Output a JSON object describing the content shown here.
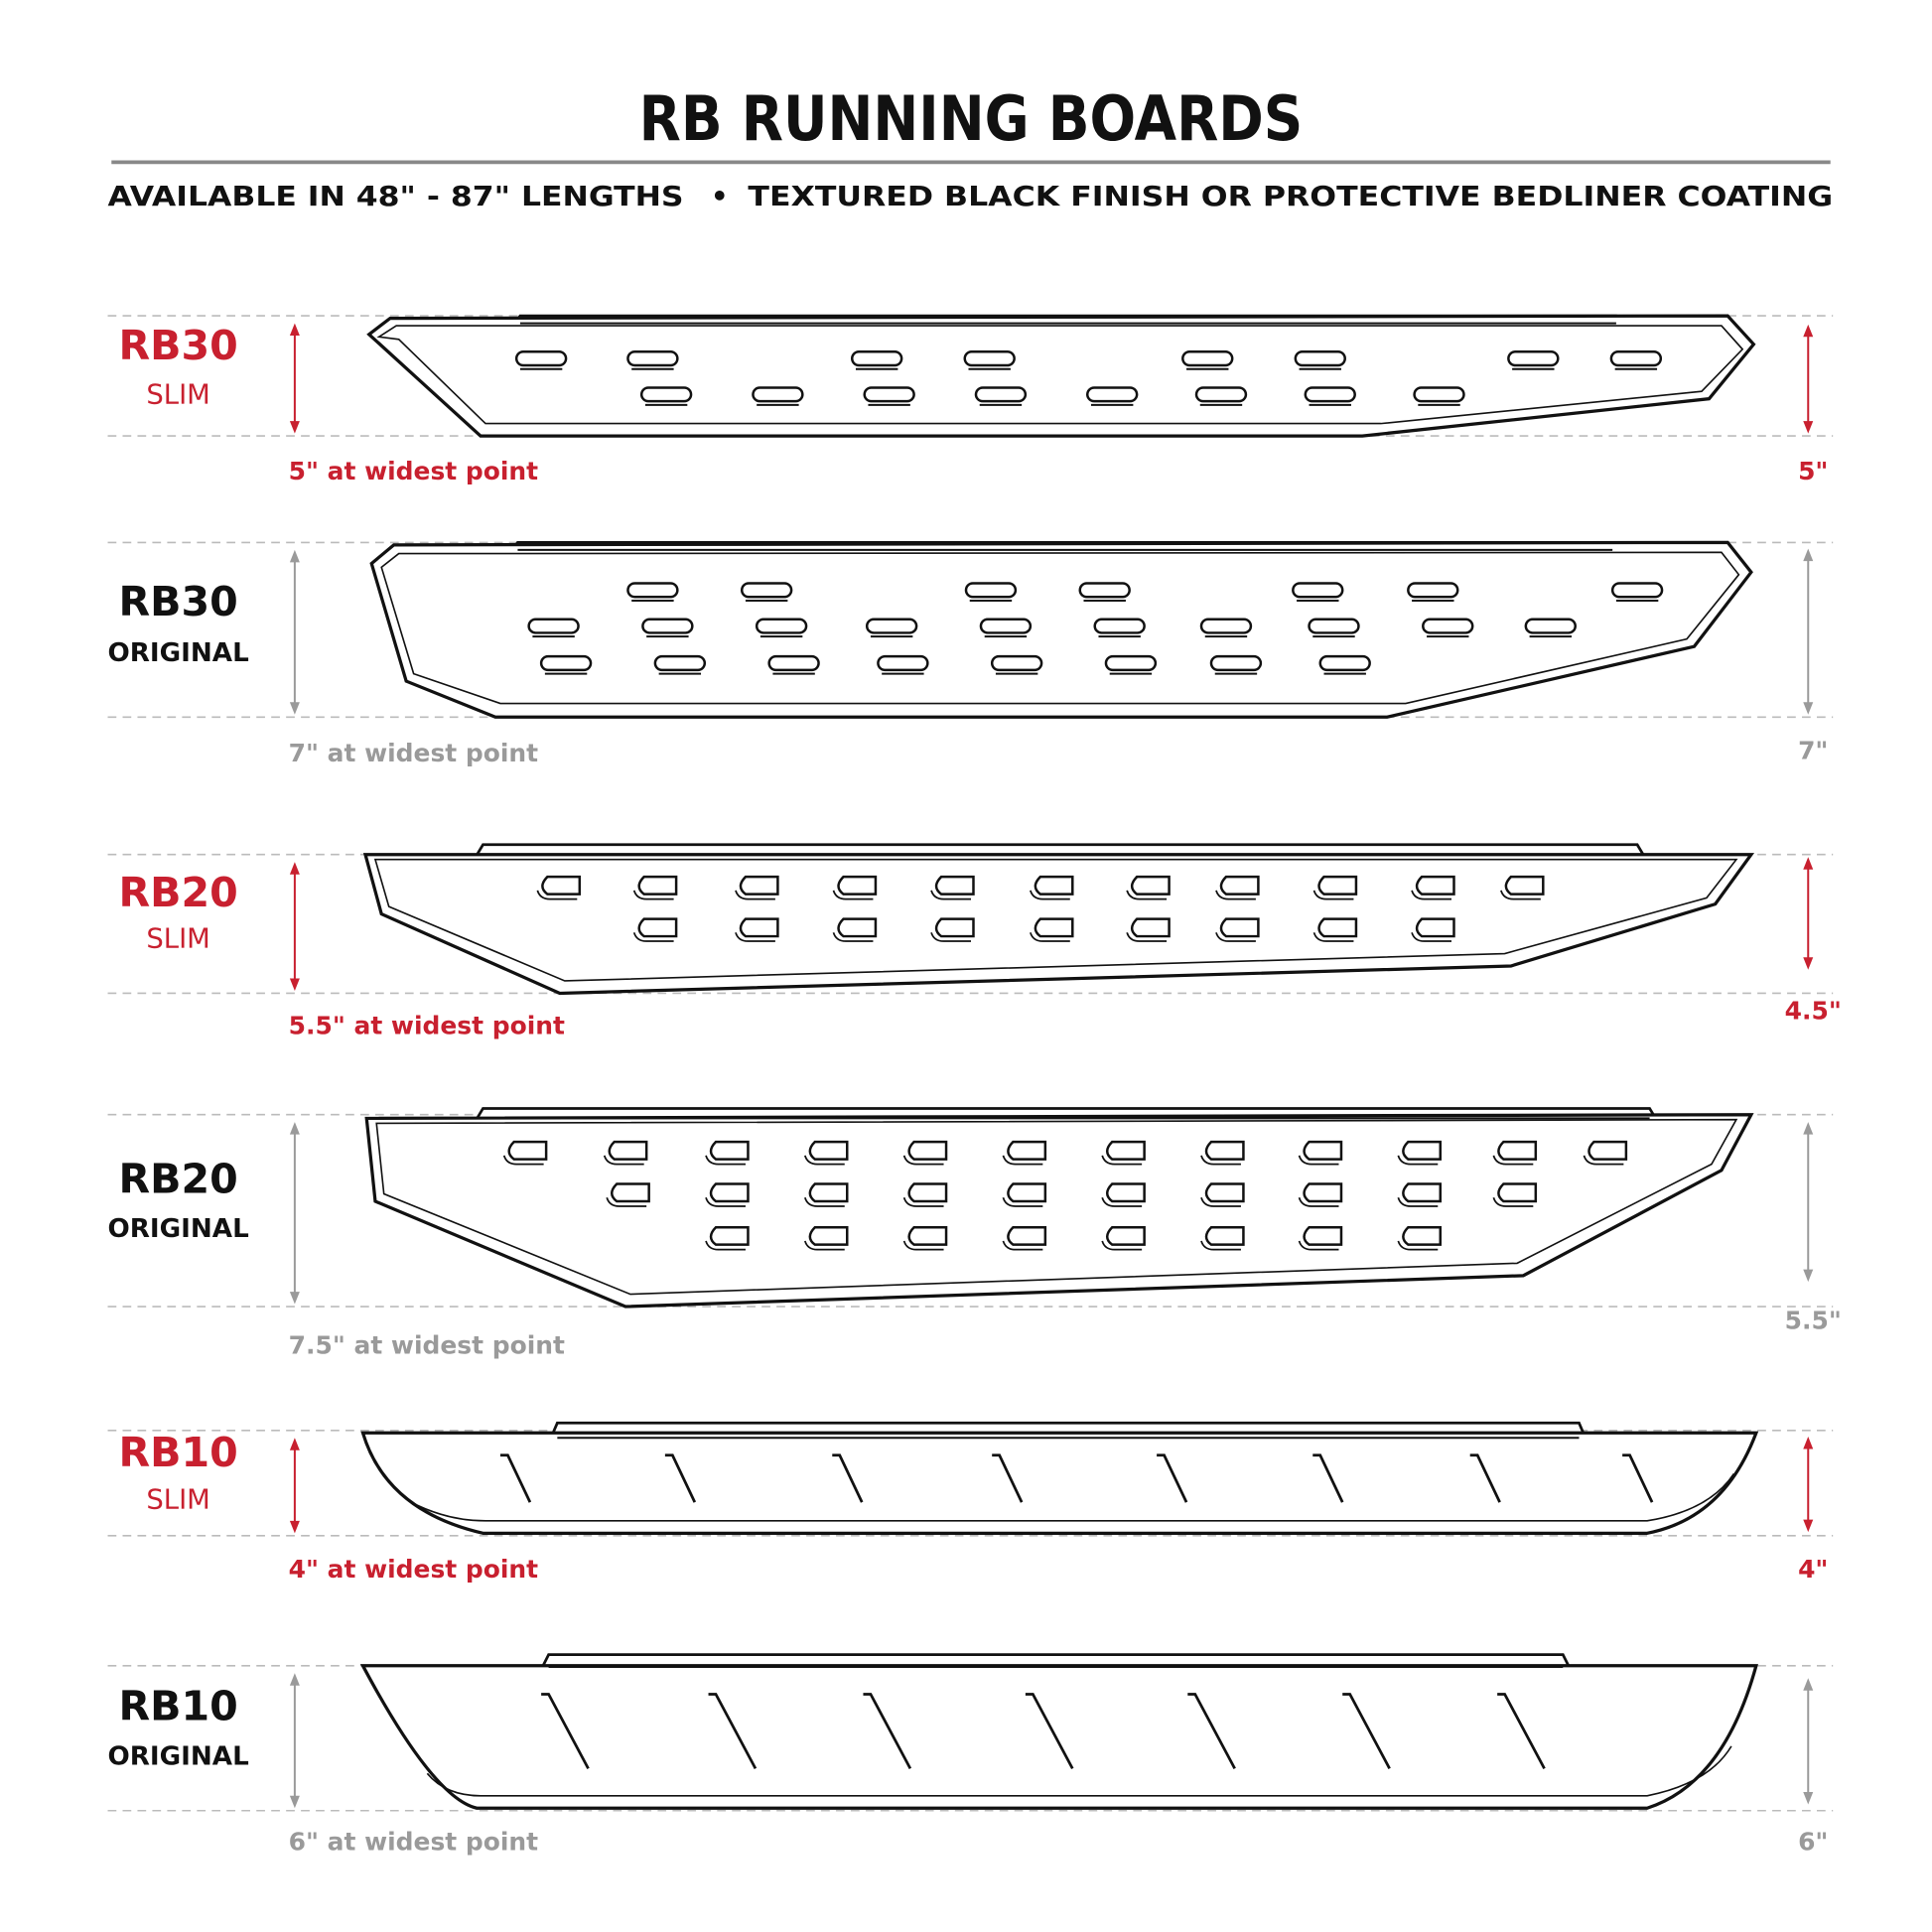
{
  "header": {
    "title": "RB RUNNING BOARDS",
    "subtitle_left": "AVAILABLE IN 48\" - 87\" LENGTHS",
    "bullet": "•",
    "subtitle_right": "TEXTURED BLACK FINISH OR PROTECTIVE BEDLINER COATING"
  },
  "colors": {
    "accent": "#c8202f",
    "muted": "#9a9a9a",
    "ink": "#111111"
  },
  "boards": [
    {
      "name": "RB30",
      "variant": "SLIM",
      "width_label": "5\" at widest point",
      "right_label": "5\"",
      "style": "accent"
    },
    {
      "name": "RB30",
      "variant": "ORIGINAL",
      "width_label": "7\" at widest point",
      "right_label": "7\"",
      "style": "muted"
    },
    {
      "name": "RB20",
      "variant": "SLIM",
      "width_label": "5.5\" at widest point",
      "right_label": "4.5\"",
      "style": "accent"
    },
    {
      "name": "RB20",
      "variant": "ORIGINAL",
      "width_label": "7.5\" at widest point",
      "right_label": "5.5\"",
      "style": "muted"
    },
    {
      "name": "RB10",
      "variant": "SLIM",
      "width_label": "4\" at widest point",
      "right_label": "4\"",
      "style": "accent"
    },
    {
      "name": "RB10",
      "variant": "ORIGINAL",
      "width_label": "6\" at widest point",
      "right_label": "6\"",
      "style": "muted"
    }
  ]
}
